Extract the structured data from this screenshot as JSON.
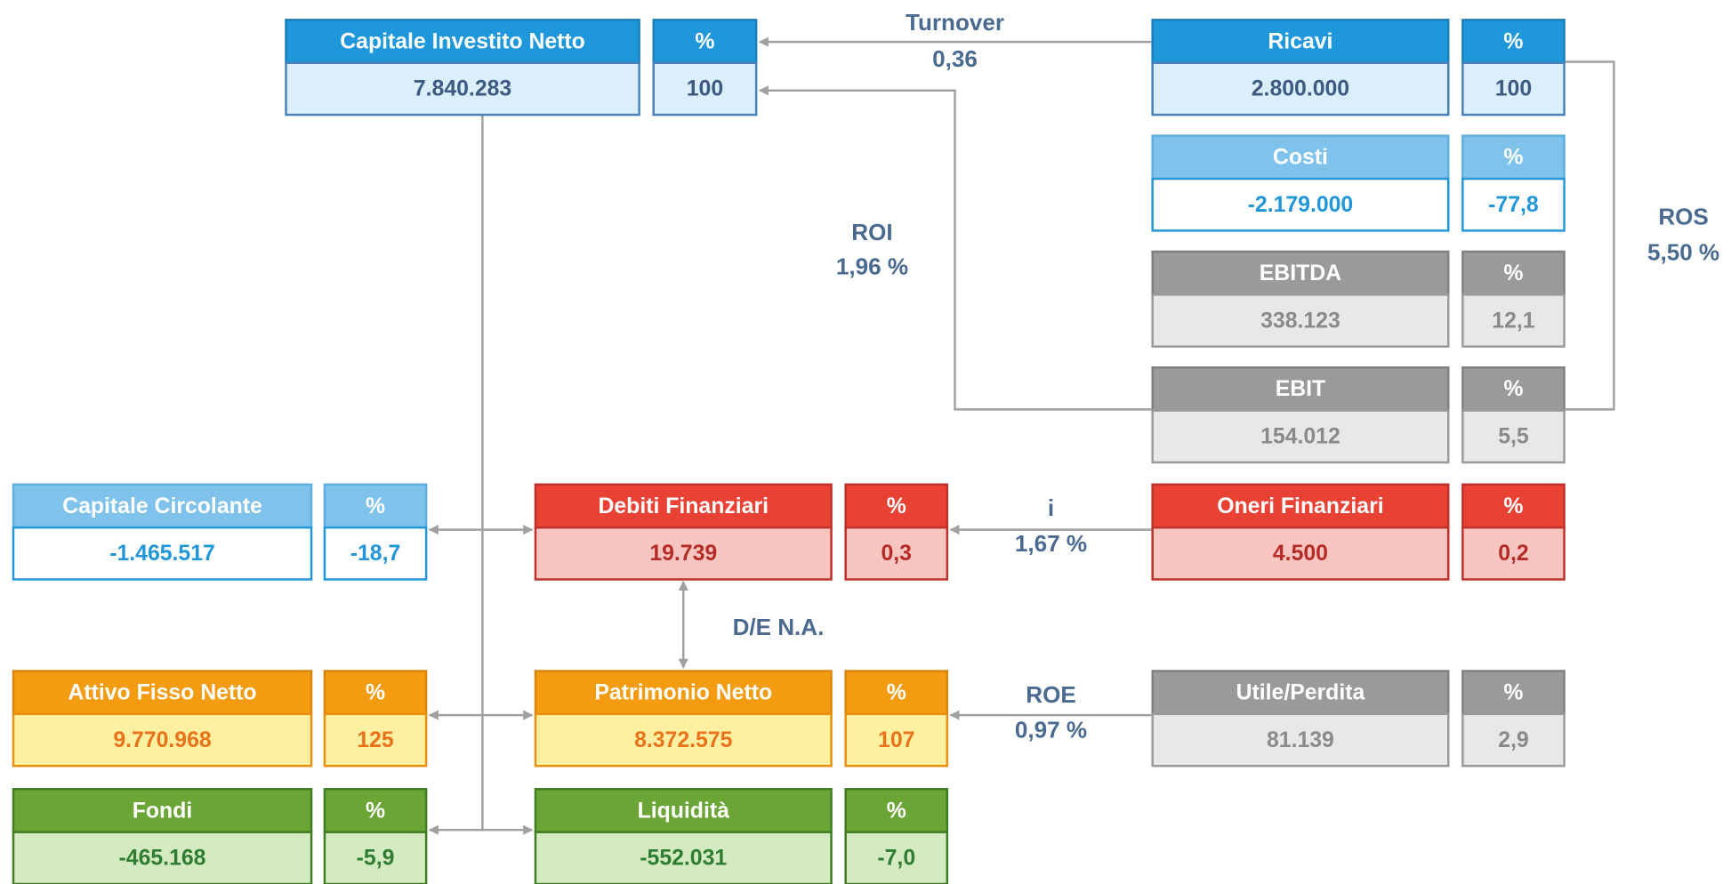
{
  "boxes": [
    {
      "label": "Capitale Investito Netto",
      "value": "7.840.283",
      "pct_label": "%",
      "pct": "100"
    },
    {
      "label": "Ricavi",
      "value": "2.800.000",
      "pct_label": "%",
      "pct": "100"
    },
    {
      "label": "Costi",
      "value": "-2.179.000",
      "pct_label": "%",
      "pct": "-77,8"
    },
    {
      "label": "EBITDA",
      "value": "338.123",
      "pct_label": "%",
      "pct": "12,1"
    },
    {
      "label": "EBIT",
      "value": "154.012",
      "pct_label": "%",
      "pct": "5,5"
    },
    {
      "label": "Oneri Finanziari",
      "value": "4.500",
      "pct_label": "%",
      "pct": "0,2"
    },
    {
      "label": "Utile/Perdita",
      "value": "81.139",
      "pct_label": "%",
      "pct": "2,9"
    },
    {
      "label": "Capitale Circolante",
      "value": "-1.465.517",
      "pct_label": "%",
      "pct": "-18,7"
    },
    {
      "label": "Attivo Fisso Netto",
      "value": "9.770.968",
      "pct_label": "%",
      "pct": "125"
    },
    {
      "label": "Fondi",
      "value": "-465.168",
      "pct_label": "%",
      "pct": "-5,9"
    },
    {
      "label": "Debiti Finanziari",
      "value": "19.739",
      "pct_label": "%",
      "pct": "0,3"
    },
    {
      "label": "Patrimonio Netto",
      "value": "8.372.575",
      "pct_label": "%",
      "pct": "107"
    },
    {
      "label": "Liquidità",
      "value": "-552.031",
      "pct_label": "%",
      "pct": "-7,0"
    }
  ],
  "ratios": [
    {
      "label": "Turnover",
      "value": "0,36"
    },
    {
      "label": "ROI",
      "value": "1,96 %"
    },
    {
      "label": "ROS",
      "value": "5,50 %"
    },
    {
      "label": "i",
      "value": "1,67 %"
    },
    {
      "label": "D/E N.A."
    },
    {
      "label": "ROE",
      "value": "0,97 %"
    }
  ]
}
